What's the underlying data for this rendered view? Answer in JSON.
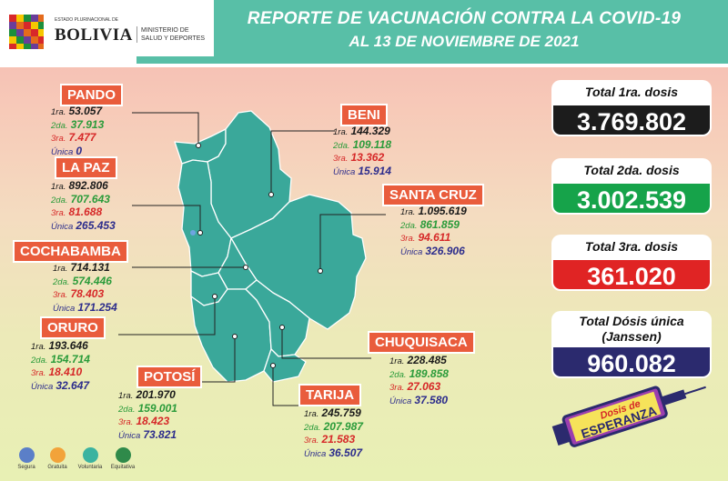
{
  "header": {
    "title_line1": "REPORTE DE VACUNACIÓN CONTRA LA COVID-19",
    "title_line2": "AL 13 DE NOVIEMBRE DE 2021",
    "logo_small": "ESTADO PLURINACIONAL DE",
    "logo_country": "BOLIVIA",
    "ministry_line1": "MINISTERIO DE",
    "ministry_line2": "SALUD Y DEPORTES"
  },
  "labels": {
    "first": "1ra.",
    "second": "2da.",
    "third": "3ra.",
    "single": "Única"
  },
  "departments": [
    {
      "name": "PANDO",
      "first": "53.057",
      "second": "37.913",
      "third": "7.477",
      "single": "0"
    },
    {
      "name": "BENI",
      "first": "144.329",
      "second": "109.118",
      "third": "13.362",
      "single": "15.914"
    },
    {
      "name": "LA PAZ",
      "first": "892.806",
      "second": "707.643",
      "third": "81.688",
      "single": "265.453"
    },
    {
      "name": "SANTA CRUZ",
      "first": "1.095.619",
      "second": "861.859",
      "third": "94.611",
      "single": "326.906"
    },
    {
      "name": "COCHABAMBA",
      "first": "714.131",
      "second": "574.446",
      "third": "78.403",
      "single": "171.254"
    },
    {
      "name": "ORURO",
      "first": "193.646",
      "second": "154.714",
      "third": "18.410",
      "single": "32.647"
    },
    {
      "name": "CHUQUISACA",
      "first": "228.485",
      "second": "189.858",
      "third": "27.063",
      "single": "37.580"
    },
    {
      "name": "POTOSÍ",
      "first": "201.970",
      "second": "159.001",
      "third": "18.423",
      "single": "73.821"
    },
    {
      "name": "TARIJA",
      "first": "245.759",
      "second": "207.987",
      "third": "21.583",
      "single": "36.507"
    }
  ],
  "totals": [
    {
      "label": "Total 1ra. dosis",
      "value": "3.769.802",
      "color": "#1c1c1c"
    },
    {
      "label": "Total 2da. dosis",
      "value": "3.002.539",
      "color": "#16a34a"
    },
    {
      "label": "Total 3ra. dosis",
      "value": "361.020",
      "color": "#e02424"
    },
    {
      "label": "Total Dósis única",
      "label2": "(Janssen)",
      "value": "960.082",
      "color": "#2b2a6e"
    }
  ],
  "legend": [
    "Segura",
    "Gratuita",
    "Voluntaria",
    "Equitativa"
  ],
  "legend_colors": [
    "#5b7fc8",
    "#f2a33a",
    "#3bb3a0",
    "#2f8a4a"
  ],
  "syringe": {
    "line1": "Dosis de",
    "line2": "ESPERANZA"
  },
  "map_color": "#3aa89a"
}
